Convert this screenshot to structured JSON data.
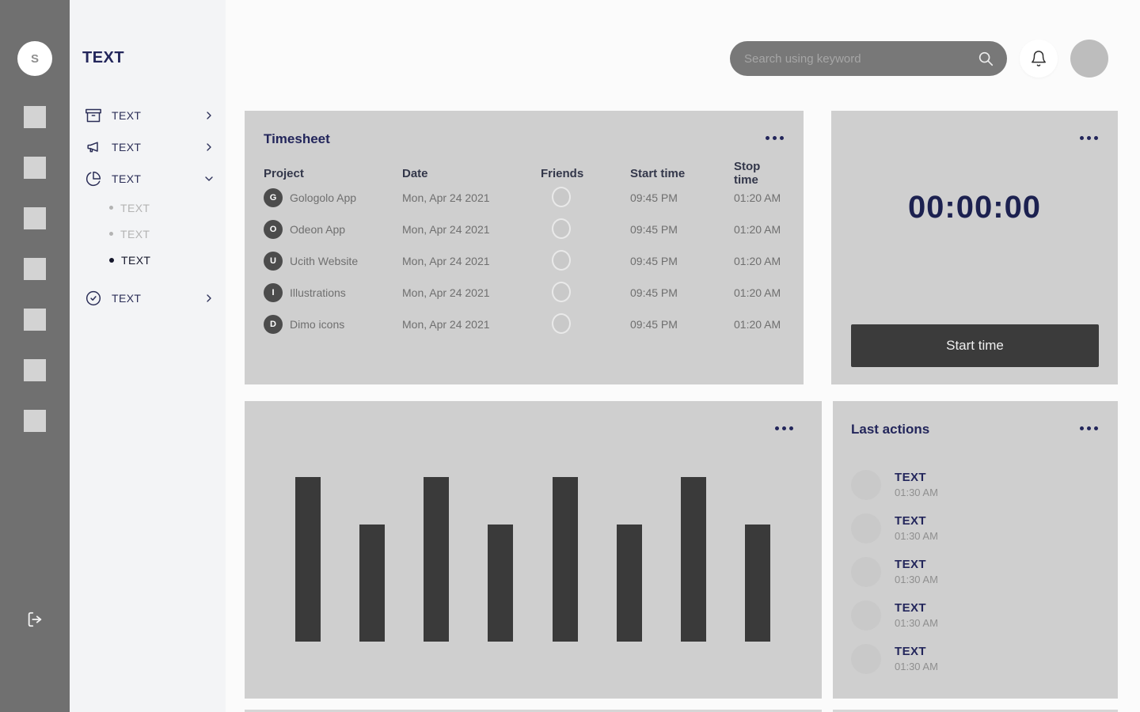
{
  "app": {
    "logo": "TEXT"
  },
  "rail": {
    "avatar_letter": "S"
  },
  "sidebar": {
    "items": [
      {
        "label": "TEXT",
        "icon": "archive-icon",
        "chevron": "right"
      },
      {
        "label": "TEXT",
        "icon": "megaphone-icon",
        "chevron": "right"
      },
      {
        "label": "TEXT",
        "icon": "pie-chart-icon",
        "chevron": "down"
      },
      {
        "label": "TEXT",
        "icon": "check-circle-icon",
        "chevron": "right"
      }
    ],
    "submenu": [
      {
        "label": "TEXT",
        "active": false
      },
      {
        "label": "TEXT",
        "active": false
      },
      {
        "label": "TEXT",
        "active": true
      }
    ]
  },
  "topbar": {
    "search_placeholder": "Search using keyword"
  },
  "timesheet": {
    "title": "Timesheet",
    "columns": [
      "Project",
      "Date",
      "Friends",
      "Start time",
      "Stop time"
    ],
    "rows": [
      {
        "initial": "G",
        "project": "Gologolo App",
        "date": "Mon, Apr 24 2021",
        "start": "09:45 PM",
        "stop": "01:20 AM"
      },
      {
        "initial": "O",
        "project": "Odeon App",
        "date": "Mon, Apr 24 2021",
        "start": "09:45 PM",
        "stop": "01:20 AM"
      },
      {
        "initial": "U",
        "project": "Ucith Website",
        "date": "Mon, Apr 24 2021",
        "start": "09:45 PM",
        "stop": "01:20 AM"
      },
      {
        "initial": "I",
        "project": "Illustrations",
        "date": "Mon, Apr 24 2021",
        "start": "09:45 PM",
        "stop": "01:20 AM"
      },
      {
        "initial": "D",
        "project": "Dimo icons",
        "date": "Mon, Apr 24 2021",
        "start": "09:45 PM",
        "stop": "01:20 AM"
      }
    ]
  },
  "timer": {
    "value": "00:00:00",
    "button_label": "Start time"
  },
  "chart_data": {
    "type": "bar",
    "categories": [
      "",
      "",
      "",
      "",
      "",
      "",
      "",
      ""
    ],
    "values": [
      100,
      71,
      100,
      71,
      100,
      71,
      100,
      71
    ],
    "title": "",
    "xlabel": "",
    "ylabel": "",
    "ylim": [
      0,
      100
    ],
    "grid": false,
    "legend": false,
    "bar_color": "#3a3a3a"
  },
  "last_actions": {
    "title": "Last actions",
    "items": [
      {
        "label": "TEXT",
        "time": "01:30 AM"
      },
      {
        "label": "TEXT",
        "time": "01:30 AM"
      },
      {
        "label": "TEXT",
        "time": "01:30 AM"
      },
      {
        "label": "TEXT",
        "time": "01:30 AM"
      },
      {
        "label": "TEXT",
        "time": "01:30 AM"
      }
    ]
  },
  "colors": {
    "accent_navy": "#23265b",
    "card_bg": "#cfcfcf",
    "bar_dark": "#3a3a3a",
    "rail_gray": "#707070",
    "button_dark": "#3b3b3b"
  }
}
